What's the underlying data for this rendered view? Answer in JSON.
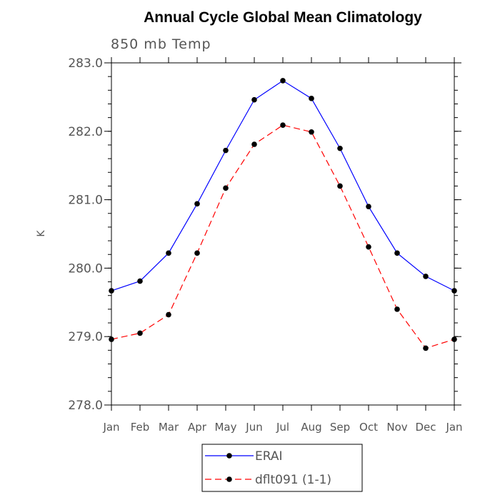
{
  "chart_data": {
    "type": "line",
    "title": "Annual Cycle Global Mean Climatology",
    "subtitle": "850 mb Temp",
    "xlabel": "",
    "ylabel": "K",
    "categories": [
      "Jan",
      "Feb",
      "Mar",
      "Apr",
      "May",
      "Jun",
      "Jul",
      "Aug",
      "Sep",
      "Oct",
      "Nov",
      "Dec",
      "Jan"
    ],
    "ylim": [
      278.0,
      283.0
    ],
    "yticks": [
      "278.0",
      "279.0",
      "280.0",
      "281.0",
      "282.0",
      "283.0"
    ],
    "grid": false,
    "legend_position": "bottom-center",
    "series": [
      {
        "name": "ERAI",
        "color": "#0000ff",
        "style": "solid",
        "values": [
          279.67,
          279.81,
          280.22,
          280.94,
          281.72,
          282.46,
          282.74,
          282.48,
          281.75,
          280.9,
          280.22,
          279.88,
          279.67
        ]
      },
      {
        "name": "dflt091 (1-1)",
        "color": "#ff0000",
        "style": "dashed",
        "values": [
          278.96,
          279.05,
          279.32,
          280.22,
          281.17,
          281.81,
          282.09,
          281.99,
          281.2,
          280.31,
          279.4,
          278.83,
          278.96
        ]
      }
    ]
  }
}
